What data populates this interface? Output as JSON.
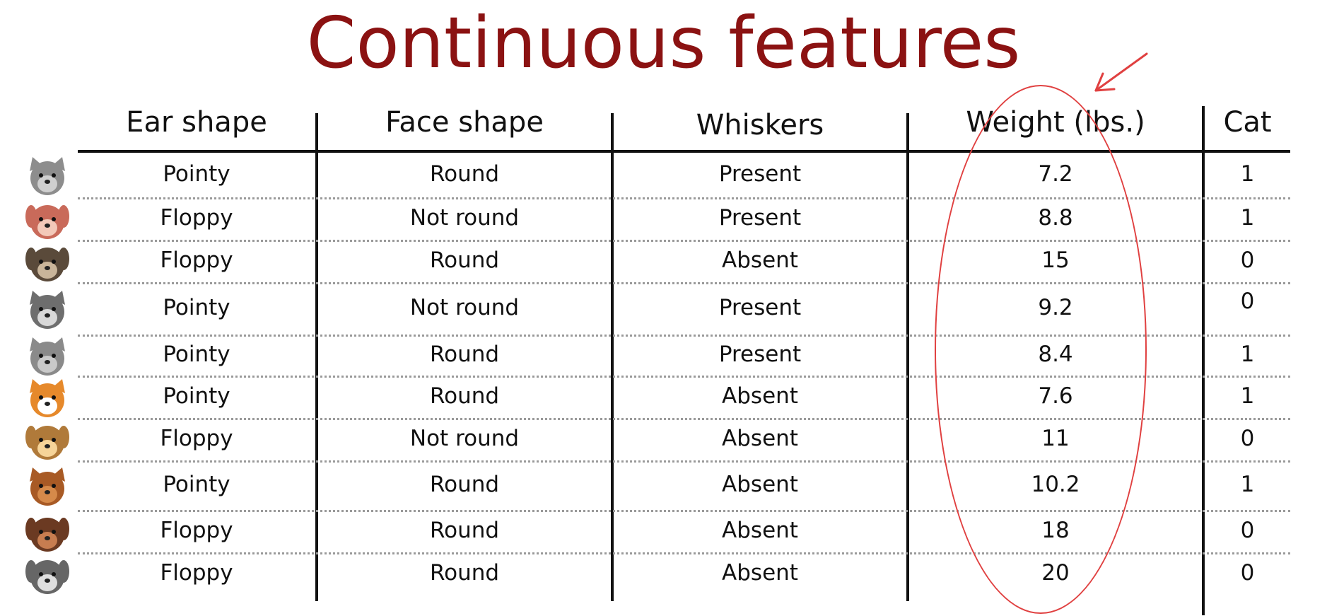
{
  "title": "Continuous features",
  "columns": [
    "Ear shape",
    "Face shape",
    "Whiskers",
    "Weight (lbs.)",
    "Cat"
  ],
  "rows": [
    {
      "animal_icon": "gray-cat-icon",
      "ear": "Pointy",
      "face": "Round",
      "whiskers": "Present",
      "weight": "7.2",
      "cat": "1"
    },
    {
      "animal_icon": "pink-dog-icon",
      "ear": "Floppy",
      "face": "Not round",
      "whiskers": "Present",
      "weight": "8.8",
      "cat": "1"
    },
    {
      "animal_icon": "pug-dog-icon",
      "ear": "Floppy",
      "face": "Round",
      "whiskers": "Absent",
      "weight": "15",
      "cat": "0"
    },
    {
      "animal_icon": "gray-wolf-dog-icon",
      "ear": "Pointy",
      "face": "Not round",
      "whiskers": "Present",
      "weight": "9.2",
      "cat": "0"
    },
    {
      "animal_icon": "gray-kitten-icon",
      "ear": "Pointy",
      "face": "Round",
      "whiskers": "Present",
      "weight": "8.4",
      "cat": "1"
    },
    {
      "animal_icon": "orange-shiba-icon",
      "ear": "Pointy",
      "face": "Round",
      "whiskers": "Absent",
      "weight": "7.6",
      "cat": "1"
    },
    {
      "animal_icon": "tan-puppy-icon",
      "ear": "Floppy",
      "face": "Not round",
      "whiskers": "Absent",
      "weight": "11",
      "cat": "0"
    },
    {
      "animal_icon": "orange-cat-icon",
      "ear": "Pointy",
      "face": "Round",
      "whiskers": "Absent",
      "weight": "10.2",
      "cat": "1"
    },
    {
      "animal_icon": "brown-dog-icon",
      "ear": "Floppy",
      "face": "Round",
      "whiskers": "Absent",
      "weight": "18",
      "cat": "0"
    },
    {
      "animal_icon": "white-dog-icon",
      "ear": "Floppy",
      "face": "Round",
      "whiskers": "Absent",
      "weight": "20",
      "cat": "0"
    }
  ],
  "colors": {
    "title": "#8b1212",
    "annotation": "#e04040"
  }
}
